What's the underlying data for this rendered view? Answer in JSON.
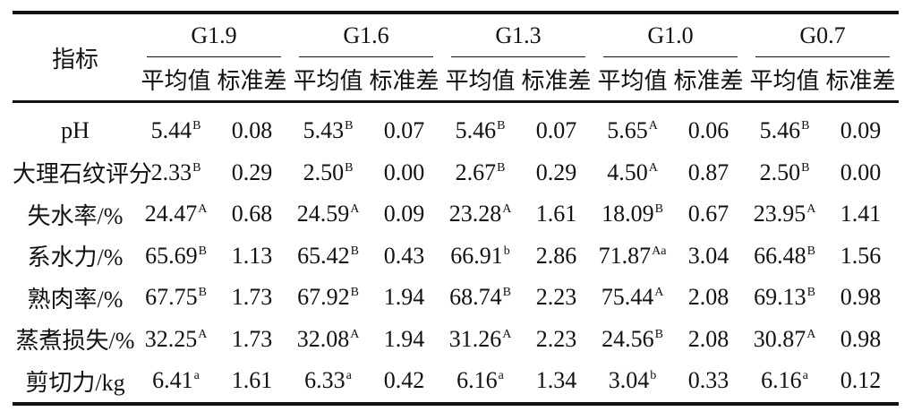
{
  "table": {
    "row_header": "指标",
    "groups": [
      "G1.9",
      "G1.6",
      "G1.3",
      "G1.0",
      "G0.7"
    ],
    "sub_headers": {
      "mean": "平均值",
      "sd": "标准差"
    },
    "rows": [
      {
        "label": "pH",
        "cells": [
          {
            "mean": "5.44",
            "sup": "B",
            "sd": "0.08"
          },
          {
            "mean": "5.43",
            "sup": "B",
            "sd": "0.07"
          },
          {
            "mean": "5.46",
            "sup": "B",
            "sd": "0.07"
          },
          {
            "mean": "5.65",
            "sup": "A",
            "sd": "0.06"
          },
          {
            "mean": "5.46",
            "sup": "B",
            "sd": "0.09"
          }
        ]
      },
      {
        "label": "大理石纹评分",
        "cells": [
          {
            "mean": "2.33",
            "sup": "B",
            "sd": "0.29"
          },
          {
            "mean": "2.50",
            "sup": "B",
            "sd": "0.00"
          },
          {
            "mean": "2.67",
            "sup": "B",
            "sd": "0.29"
          },
          {
            "mean": "4.50",
            "sup": "A",
            "sd": "0.87"
          },
          {
            "mean": "2.50",
            "sup": "B",
            "sd": "0.00"
          }
        ]
      },
      {
        "label": "失水率/%",
        "cells": [
          {
            "mean": "24.47",
            "sup": "A",
            "sd": "0.68"
          },
          {
            "mean": "24.59",
            "sup": "A",
            "sd": "0.09"
          },
          {
            "mean": "23.28",
            "sup": "A",
            "sd": "1.61"
          },
          {
            "mean": "18.09",
            "sup": "B",
            "sd": "0.67"
          },
          {
            "mean": "23.95",
            "sup": "A",
            "sd": "1.41"
          }
        ]
      },
      {
        "label": "系水力/%",
        "cells": [
          {
            "mean": "65.69",
            "sup": "B",
            "sd": "1.13"
          },
          {
            "mean": "65.42",
            "sup": "B",
            "sd": "0.43"
          },
          {
            "mean": "66.91",
            "sup": "b",
            "sd": "2.86"
          },
          {
            "mean": "71.87",
            "sup": "Aa",
            "sd": "3.04"
          },
          {
            "mean": "66.48",
            "sup": "B",
            "sd": "1.56"
          }
        ]
      },
      {
        "label": "熟肉率/%",
        "cells": [
          {
            "mean": "67.75",
            "sup": "B",
            "sd": "1.73"
          },
          {
            "mean": "67.92",
            "sup": "B",
            "sd": "1.94"
          },
          {
            "mean": "68.74",
            "sup": "B",
            "sd": "2.23"
          },
          {
            "mean": "75.44",
            "sup": "A",
            "sd": "2.08"
          },
          {
            "mean": "69.13",
            "sup": "B",
            "sd": "0.98"
          }
        ]
      },
      {
        "label": "蒸煮损失/%",
        "cells": [
          {
            "mean": "32.25",
            "sup": "A",
            "sd": "1.73"
          },
          {
            "mean": "32.08",
            "sup": "A",
            "sd": "1.94"
          },
          {
            "mean": "31.26",
            "sup": "A",
            "sd": "2.23"
          },
          {
            "mean": "24.56",
            "sup": "B",
            "sd": "2.08"
          },
          {
            "mean": "30.87",
            "sup": "A",
            "sd": "0.98"
          }
        ]
      },
      {
        "label": "剪切力/kg",
        "cells": [
          {
            "mean": "6.41",
            "sup": "a",
            "sd": "1.61"
          },
          {
            "mean": "6.33",
            "sup": "a",
            "sd": "0.42"
          },
          {
            "mean": "6.16",
            "sup": "a",
            "sd": "1.34"
          },
          {
            "mean": "3.04",
            "sup": "b",
            "sd": "0.33"
          },
          {
            "mean": "6.16",
            "sup": "a",
            "sd": "0.12"
          }
        ]
      }
    ]
  }
}
